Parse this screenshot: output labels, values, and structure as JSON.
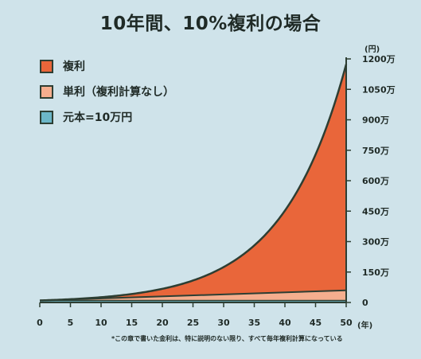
{
  "title": "10年間、10%複利の場合",
  "legend": [
    {
      "label": "複利",
      "color": "#e9663a"
    },
    {
      "label": "単利（複利計算なし）",
      "color": "#f5ae8e"
    },
    {
      "label": "元本=10万円",
      "color": "#6cb7c8"
    }
  ],
  "y_unit": "(円)",
  "x_unit": "(年)",
  "footnote": "*この章で書いた金利は、特に説明のない限り、すべて毎年複利計算になっている",
  "colors": {
    "background": "#cfe3ea",
    "outline": "#2d3e33",
    "compound": "#e9663a",
    "simple": "#f5ae8e",
    "principal": "#6cb7c8"
  },
  "chart_data": {
    "type": "area",
    "title": "10年間、10%複利の場合",
    "x_ticks": [
      "0",
      "5",
      "10",
      "15",
      "20",
      "25",
      "30",
      "35",
      "40",
      "45",
      "50"
    ],
    "y_ticks": [
      "0",
      "150万",
      "300万",
      "450万",
      "600万",
      "750万",
      "900万",
      "1050万",
      "1200万"
    ],
    "y_tick_values": [
      0,
      150,
      300,
      450,
      600,
      750,
      900,
      1050,
      1200
    ],
    "xlim": [
      0,
      50
    ],
    "ylim": [
      0,
      1200
    ],
    "y_axis_side": "right",
    "series": [
      {
        "name": "複利",
        "formula_principal": 10,
        "formula_rate": 0.1,
        "kind": "compound",
        "values_at_ticks": [
          10,
          16.1,
          25.9,
          41.8,
          67.3,
          108.3,
          174.5,
          281.0,
          452.6,
          728.9,
          1173.9
        ]
      },
      {
        "name": "単利（複利計算なし）",
        "kind": "simple",
        "values_at_ticks": [
          10,
          15,
          20,
          25,
          30,
          35,
          40,
          45,
          50,
          55,
          60
        ]
      },
      {
        "name": "元本=10万円",
        "kind": "principal",
        "values_at_ticks": [
          10,
          10,
          10,
          10,
          10,
          10,
          10,
          10,
          10,
          10,
          10
        ]
      }
    ]
  }
}
